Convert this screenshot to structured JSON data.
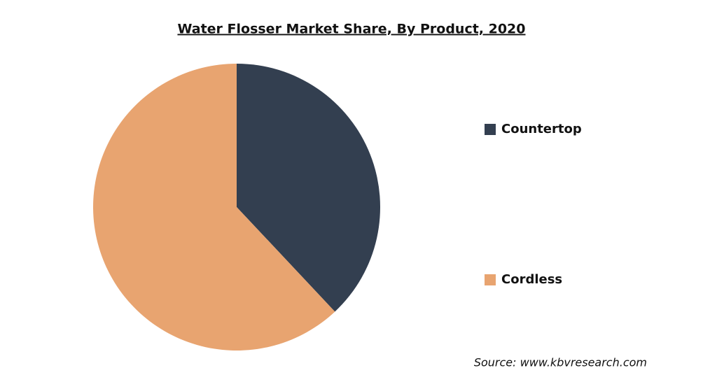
{
  "chart_data": {
    "type": "pie",
    "title": "Water Flosser Market Share, By Product, 2020",
    "categories": [
      "Countertop",
      "Cordless"
    ],
    "values": [
      38,
      62
    ],
    "colors": [
      "#333f50",
      "#e8a470"
    ],
    "source": "Source: www.kbvresearch.com"
  }
}
